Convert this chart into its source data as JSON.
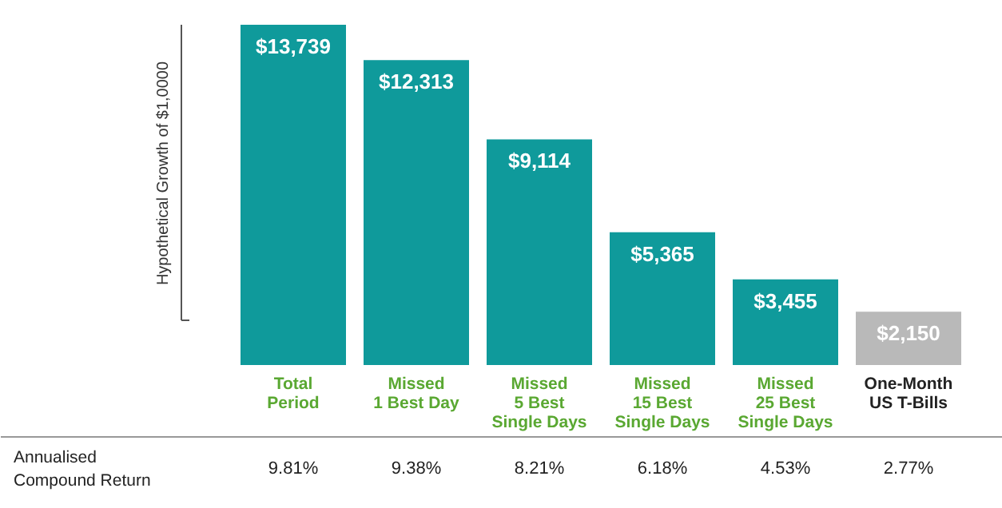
{
  "chart_data": {
    "type": "bar",
    "ylabel": "Hypothetical Growth of $1,0000",
    "categories": [
      "Total\nPeriod",
      "Missed\n1 Best Day",
      "Missed\n5 Best\nSingle Days",
      "Missed\n15 Best\nSingle Days",
      "Missed\n25 Best\nSingle Days",
      "One-Month\nUS T-Bills"
    ],
    "values": [
      13739,
      12313,
      9114,
      5365,
      3455,
      2150
    ],
    "value_labels": [
      "$13,739",
      "$12,313",
      "$9,114",
      "$5,365",
      "$3,455",
      "$2,150"
    ],
    "colors": [
      "#0f9a9b",
      "#0f9a9b",
      "#0f9a9b",
      "#0f9a9b",
      "#0f9a9b",
      "#b9b9b9"
    ],
    "annotations": [
      "Annualised\nCompound Return",
      "9.81%",
      "9.38%",
      "8.21%",
      "6.18%",
      "4.53%",
      "2.77%"
    ],
    "grid": false
  }
}
